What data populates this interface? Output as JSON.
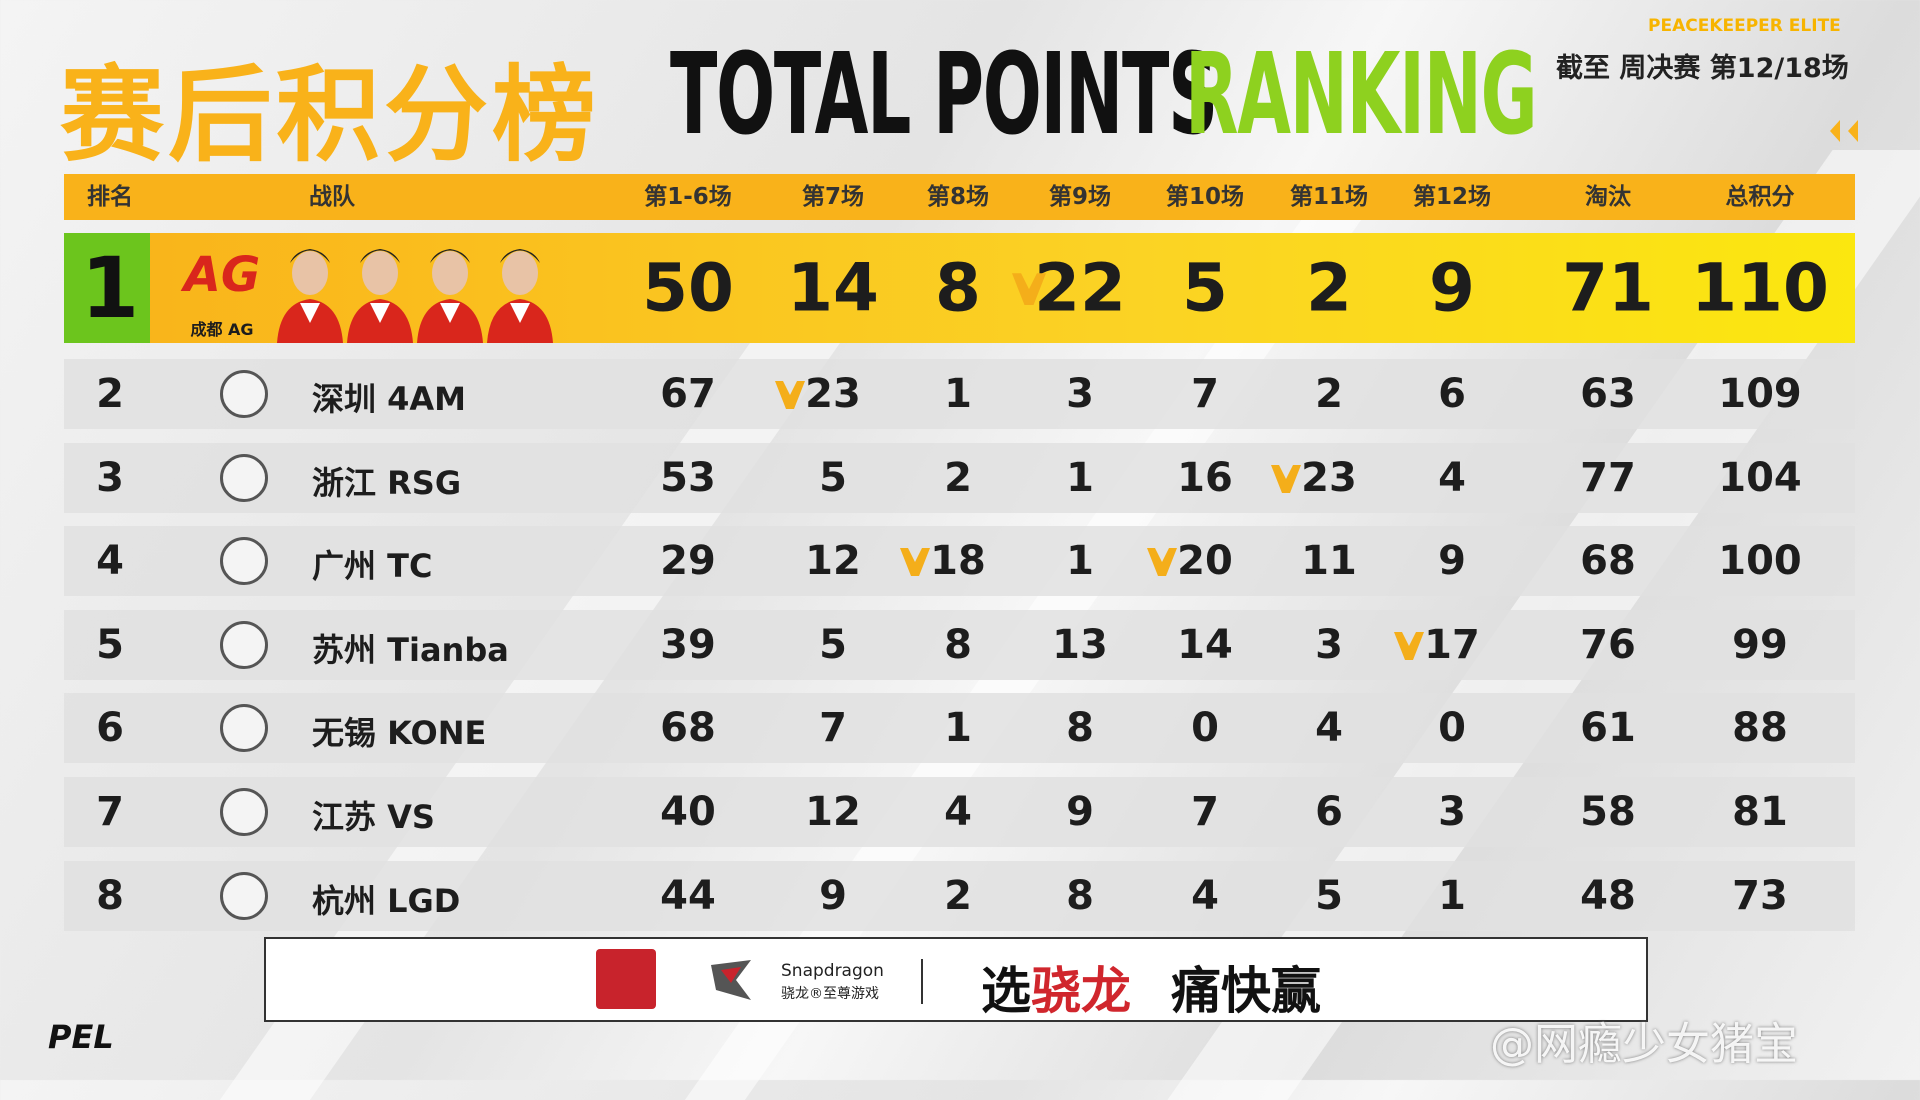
{
  "header": {
    "brand": "PEACEKEEPER ELITE",
    "title_cn": "赛后积分榜",
    "title_en_1": "TOTAL POINTS",
    "title_en_2": "RANKING",
    "progress": "截至 周决赛 第12/18场"
  },
  "table": {
    "columns": [
      "排名",
      "战队",
      "第1-6场",
      "第7场",
      "第8场",
      "第9场",
      "第10场",
      "第11场",
      "第12场",
      "淘汰",
      "总积分"
    ],
    "rows": [
      {
        "rank": 1,
        "logo_text": "AG",
        "team": "成都 AG",
        "scores": [
          50,
          14,
          8,
          22,
          5,
          2,
          9
        ],
        "elims": 71,
        "total": 110,
        "crowns": [
          3
        ]
      },
      {
        "rank": 2,
        "team": "深圳 4AM",
        "scores": [
          67,
          23,
          1,
          3,
          7,
          2,
          6
        ],
        "elims": 63,
        "total": 109,
        "crowns": [
          1
        ]
      },
      {
        "rank": 3,
        "team": "浙江 RSG",
        "scores": [
          53,
          5,
          2,
          1,
          16,
          23,
          4
        ],
        "elims": 77,
        "total": 104,
        "crowns": [
          5
        ]
      },
      {
        "rank": 4,
        "team": "广州 TC",
        "scores": [
          29,
          12,
          18,
          1,
          20,
          11,
          9
        ],
        "elims": 68,
        "total": 100,
        "crowns": [
          2,
          4
        ]
      },
      {
        "rank": 5,
        "team": "苏州 Tianba",
        "scores": [
          39,
          5,
          8,
          13,
          14,
          3,
          17
        ],
        "elims": 76,
        "total": 99,
        "crowns": [
          6
        ]
      },
      {
        "rank": 6,
        "team": "无锡 KONE",
        "scores": [
          68,
          7,
          1,
          8,
          0,
          4,
          0
        ],
        "elims": 61,
        "total": 88
      },
      {
        "rank": 7,
        "team": "江苏 VS",
        "scores": [
          40,
          12,
          4,
          9,
          7,
          6,
          3
        ],
        "elims": 58,
        "total": 81
      },
      {
        "rank": 8,
        "team": "杭州 LGD",
        "scores": [
          44,
          9,
          2,
          8,
          4,
          5,
          1
        ],
        "elims": 48,
        "total": 73
      }
    ]
  },
  "footer": {
    "sponsor": "Snapdragon",
    "sponsor_sub": "骁龙®至尊游戏",
    "slogan_1": "选",
    "slogan_2": "骁龙",
    "slogan_3": "痛快赢"
  },
  "logo": "PEL",
  "watermark": "@网瘾少女猪宝"
}
